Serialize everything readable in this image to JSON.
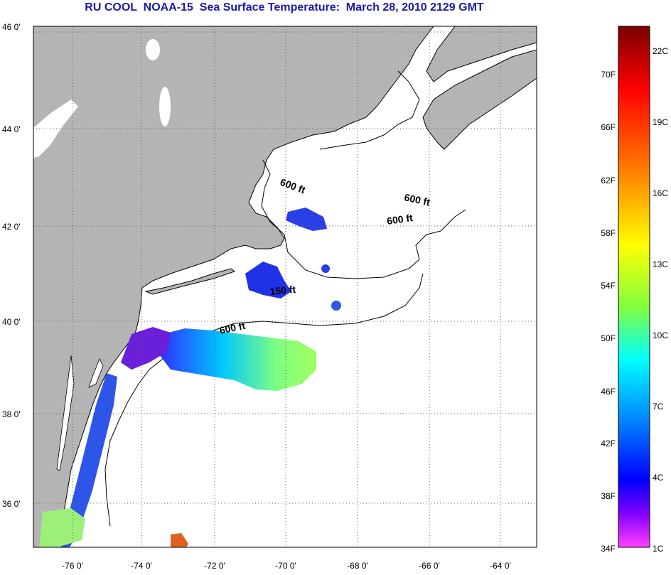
{
  "title": "RU COOL  NOAA-15  Sea Surface Temperature:  March 28, 2010 2129 GMT",
  "map": {
    "longitude_ticks": [
      "-76 0'",
      "-74 0'",
      "-72 0'",
      "-70 0'",
      "-68 0'",
      "-66 0'",
      "-64 0'"
    ],
    "latitude_ticks": [
      "46 0'",
      "44 0'",
      "42 0'",
      "40 0'",
      "38 0'",
      "36 0'"
    ],
    "contour_labels": [
      "600 ft",
      "600 ft",
      "600 ft",
      "150 ft",
      "600 ft"
    ],
    "colors": {
      "land": "#b4b4b4",
      "water": "#ffffff"
    }
  },
  "colorbar": {
    "fahrenheit_labels": [
      "70F",
      "66F",
      "62F",
      "58F",
      "54F",
      "50F",
      "46F",
      "42F",
      "38F",
      "34F"
    ],
    "celsius_labels": [
      "22C",
      "19C",
      "16C",
      "13C",
      "10C",
      "7C",
      "4C",
      "1C"
    ],
    "gradient_colors": [
      "#7a0000",
      "#ff0000",
      "#ff8000",
      "#ffff00",
      "#80ff40",
      "#00ffff",
      "#0080ff",
      "#0000ff",
      "#8000ff",
      "#ff40ff"
    ]
  }
}
